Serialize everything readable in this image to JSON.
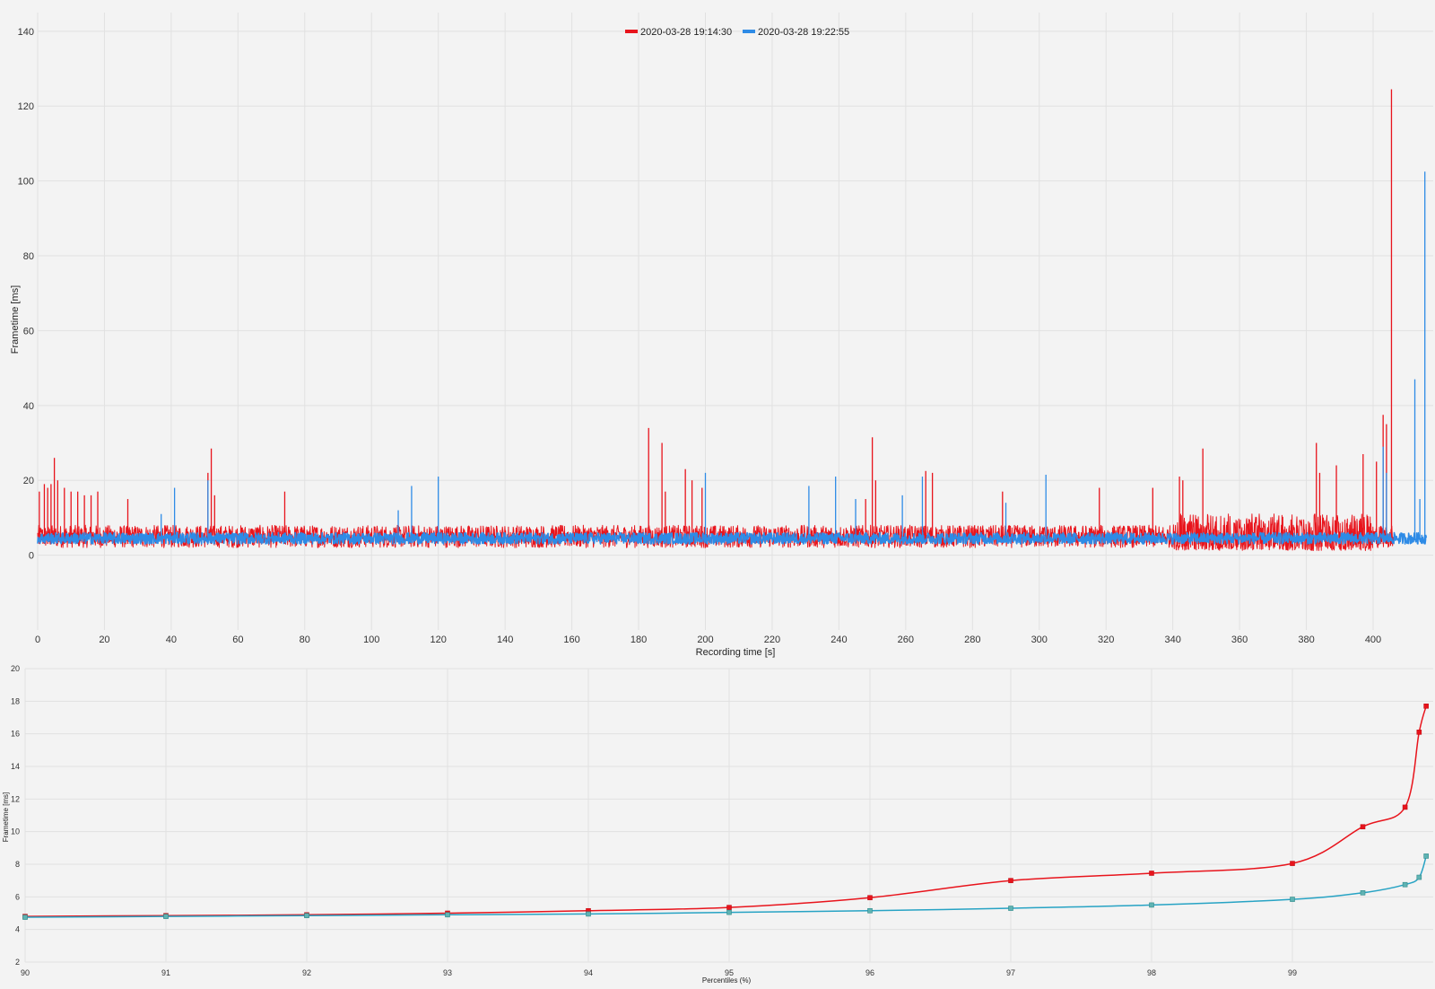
{
  "chart_data": [
    {
      "type": "line",
      "title": "",
      "xlabel": "Recording time [s]",
      "ylabel": "Frametime [ms]",
      "xlim": [
        0,
        418
      ],
      "ylim": [
        -20,
        145
      ],
      "xticks": [
        0,
        20,
        40,
        60,
        80,
        100,
        120,
        140,
        160,
        180,
        200,
        220,
        240,
        260,
        280,
        300,
        320,
        340,
        360,
        380,
        400
      ],
      "yticks": [
        0,
        20,
        40,
        60,
        80,
        100,
        120,
        140
      ],
      "legend_position": "top-center",
      "grid": true,
      "series": [
        {
          "name": "2020-03-28 19:14:30",
          "color": "#e8141c",
          "baseline_range_ms": [
            2,
            8
          ],
          "end_time_s": 406,
          "spikes": [
            [
              0.5,
              17
            ],
            [
              2,
              19
            ],
            [
              3,
              18
            ],
            [
              4,
              19
            ],
            [
              5,
              26
            ],
            [
              6,
              20
            ],
            [
              8,
              18
            ],
            [
              10,
              17
            ],
            [
              12,
              17
            ],
            [
              14,
              16
            ],
            [
              16,
              16
            ],
            [
              18,
              17
            ],
            [
              27,
              15
            ],
            [
              51,
              22
            ],
            [
              52,
              28.5
            ],
            [
              53,
              16
            ],
            [
              74,
              17
            ],
            [
              183,
              34
            ],
            [
              187,
              30
            ],
            [
              188,
              17
            ],
            [
              194,
              23
            ],
            [
              196,
              20
            ],
            [
              199,
              18
            ],
            [
              248,
              15
            ],
            [
              250,
              31.5
            ],
            [
              251,
              20
            ],
            [
              266,
              22.5
            ],
            [
              268,
              22
            ],
            [
              289,
              17
            ],
            [
              318,
              18
            ],
            [
              334,
              18
            ],
            [
              342,
              21
            ],
            [
              343,
              20
            ],
            [
              349,
              28.5
            ],
            [
              383,
              30
            ],
            [
              384,
              22
            ],
            [
              389,
              24
            ],
            [
              397,
              27
            ],
            [
              401,
              25
            ],
            [
              403,
              37.5
            ],
            [
              404,
              35
            ],
            [
              405.5,
              124.5
            ]
          ]
        },
        {
          "name": "2020-03-28 19:22:55",
          "color": "#2e8be6",
          "baseline_range_ms": [
            3,
            6
          ],
          "end_time_s": 416,
          "spikes": [
            [
              37,
              11
            ],
            [
              41,
              18
            ],
            [
              51,
              20
            ],
            [
              108,
              12
            ],
            [
              112,
              18.5
            ],
            [
              120,
              21
            ],
            [
              200,
              22
            ],
            [
              231,
              18.5
            ],
            [
              239,
              21
            ],
            [
              245,
              15
            ],
            [
              259,
              16
            ],
            [
              265,
              21
            ],
            [
              290,
              14
            ],
            [
              302,
              21.5
            ],
            [
              403,
              29
            ],
            [
              404,
              22
            ],
            [
              412.5,
              47
            ],
            [
              414,
              15
            ],
            [
              415.5,
              102.5
            ]
          ]
        }
      ]
    },
    {
      "type": "line",
      "title": "",
      "xlabel": "Percentiles (%)",
      "ylabel": "Frametime [ms]",
      "xlim": [
        90,
        100
      ],
      "ylim": [
        2,
        20
      ],
      "xticks": [
        90,
        91,
        92,
        93,
        94,
        95,
        96,
        97,
        98,
        99
      ],
      "yticks": [
        2,
        4,
        6,
        8,
        10,
        12,
        14,
        16,
        18,
        20
      ],
      "grid": true,
      "series": [
        {
          "name": "2020-03-28 19:14:30",
          "color": "#e8141c",
          "x": [
            90,
            91,
            92,
            93,
            94,
            95,
            96,
            97,
            98,
            99,
            99.5,
            99.8,
            99.9,
            99.95
          ],
          "y": [
            4.8,
            4.85,
            4.9,
            5.0,
            5.15,
            5.35,
            5.95,
            7.0,
            7.45,
            8.05,
            10.3,
            11.5,
            16.1,
            17.7
          ]
        },
        {
          "name": "2020-03-28 19:22:55",
          "color": "#27a3c4",
          "x": [
            90,
            91,
            92,
            93,
            94,
            95,
            96,
            97,
            98,
            99,
            99.5,
            99.8,
            99.9,
            99.95
          ],
          "y": [
            4.75,
            4.8,
            4.85,
            4.9,
            4.95,
            5.05,
            5.15,
            5.3,
            5.5,
            5.85,
            6.25,
            6.75,
            7.2,
            8.5
          ]
        }
      ]
    }
  ]
}
